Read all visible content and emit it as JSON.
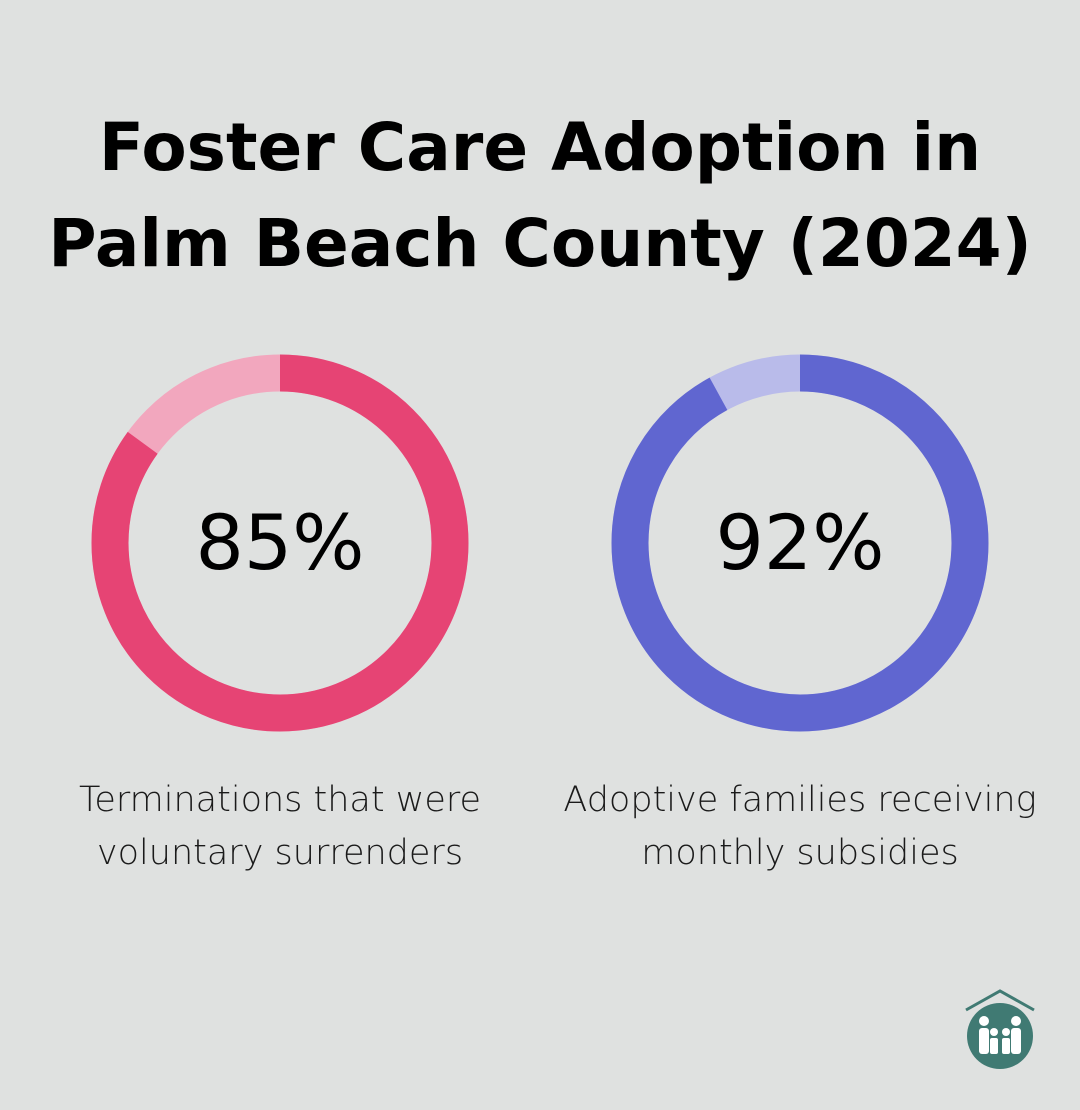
{
  "chart_data": [
    {
      "type": "pie",
      "variant": "donut",
      "value": 85,
      "label": "85%",
      "caption": "Terminations that were voluntary surrenders",
      "colors": {
        "value": "#e64474",
        "remainder": "#f2a7be"
      }
    },
    {
      "type": "pie",
      "variant": "donut",
      "value": 92,
      "label": "92%",
      "caption": "Adoptive families receiving monthly subsidies",
      "colors": {
        "value": "#6066d0",
        "remainder": "#b9bbea"
      }
    }
  ],
  "title": "Foster Care Adoption in Palm Beach County (2024)",
  "logo": {
    "icon": "house-family-logo",
    "color": "#407a73"
  }
}
